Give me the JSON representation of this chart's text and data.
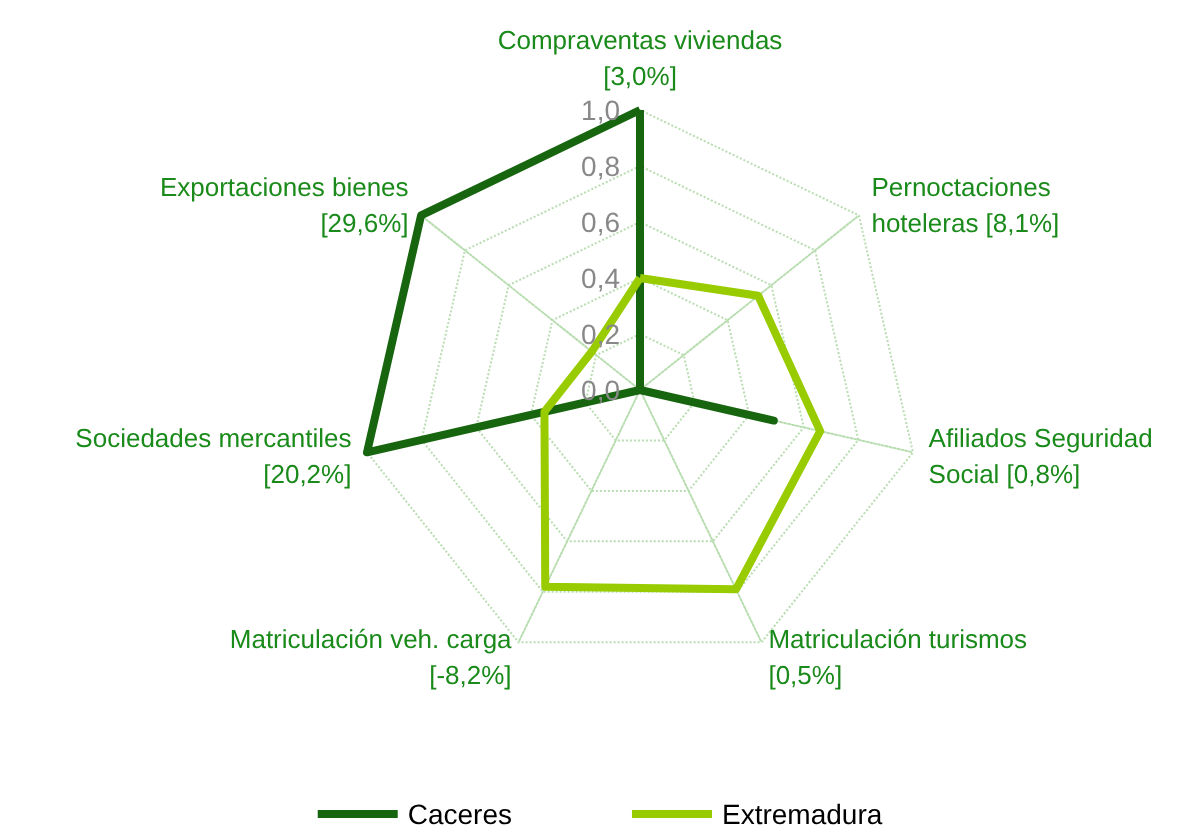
{
  "chart_data": {
    "type": "radar",
    "categories": [
      "Compraventas viviendas\n[3,0%]",
      "Pernoctaciones\nhoteleras [8,1%]",
      "Afiliados Seguridad\nSocial [0,8%]",
      "Matriculación turismos\n[0,5%]",
      "Matriculación veh. carga\n[-8,2%]",
      "Sociedades mercantiles\n[20,2%]",
      "Exportaciones bienes\n[29,6%]"
    ],
    "series": [
      {
        "name": "Caceres",
        "color": "#17660f",
        "values": [
          1.0,
          0.0,
          0.49,
          0.0,
          0.0,
          1.0,
          1.0
        ]
      },
      {
        "name": "Extremadura",
        "color": "#99cc00",
        "values": [
          0.4,
          0.54,
          0.66,
          0.79,
          0.78,
          0.35,
          0.22
        ]
      }
    ],
    "ylim": [
      0,
      1
    ],
    "yticks": [
      {
        "value": 0,
        "label": "0,0"
      },
      {
        "value": 0.2,
        "label": "0,2"
      },
      {
        "value": 0.4,
        "label": "0,4"
      },
      {
        "value": 0.6,
        "label": "0,6"
      },
      {
        "value": 0.8,
        "label": "0,8"
      },
      {
        "value": 1,
        "label": "1,0"
      }
    ],
    "grid": true,
    "legend": "bottom",
    "marker": "none"
  }
}
